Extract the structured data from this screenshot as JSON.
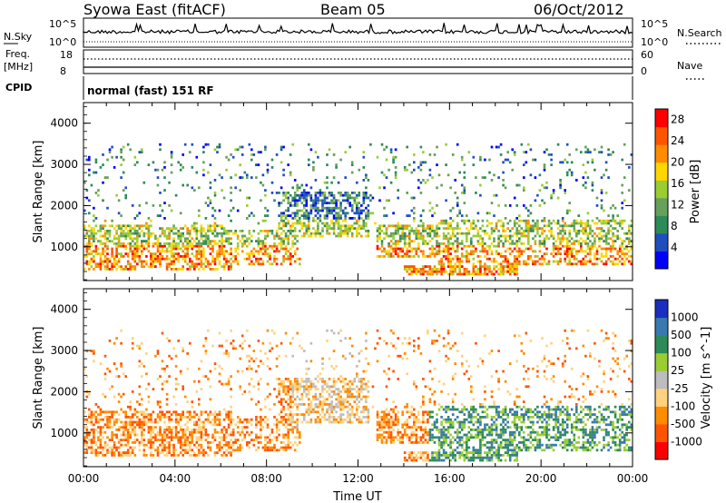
{
  "header": {
    "station": "Syowa East (fitACF)",
    "beam": "Beam 05",
    "date": "06/Oct/2012"
  },
  "strips": {
    "nsky_label": "N.Sky",
    "nsky_ticks": [
      "10^5",
      "10^0"
    ],
    "nsearch_label": "N.Search",
    "nsearch_ticks": [
      "10^5",
      "10^0"
    ],
    "freq_label_1": "Freq.",
    "freq_label_2": "[MHz]",
    "freq_ticks": [
      "18",
      "8"
    ],
    "nave_label": "Nave",
    "nave_ticks": [
      "60",
      "0"
    ],
    "cpid_label": "CPID",
    "cpid_value": "normal (fast) 151 RF"
  },
  "colors": {
    "power_scale": [
      "#0000ff",
      "#1f4fbf",
      "#2e8b57",
      "#66a05a",
      "#9acd32",
      "#ffd700",
      "#ff8c00",
      "#ff5500",
      "#ff0000"
    ],
    "velocity_scale": [
      "#ff0000",
      "#ff5500",
      "#ff8c00",
      "#ffd27f",
      "#bdbdbd",
      "#9acd32",
      "#2e8b57",
      "#3a78b0",
      "#1a2fbf"
    ]
  },
  "chart_data": [
    {
      "type": "heatmap",
      "title": "Power",
      "ylabel": "Slant Range [km]",
      "xlabel": "Time UT",
      "x_ticks": [
        "00:00",
        "04:00",
        "08:00",
        "12:00",
        "16:00",
        "20:00",
        "00:00"
      ],
      "y_ticks": [
        1000,
        2000,
        3000,
        4000
      ],
      "ylim": [
        180,
        4500
      ],
      "xlim_hours": [
        0,
        24
      ],
      "colorbar": {
        "label": "Power [dB]",
        "ticks": [
          4,
          8,
          12,
          16,
          20,
          24,
          28
        ],
        "range": [
          0,
          30
        ]
      }
    },
    {
      "type": "heatmap",
      "title": "Velocity",
      "ylabel": "Slant Range [km]",
      "xlabel": "Time UT",
      "x_ticks": [
        "00:00",
        "04:00",
        "08:00",
        "12:00",
        "16:00",
        "20:00",
        "00:00"
      ],
      "y_ticks": [
        1000,
        2000,
        3000,
        4000
      ],
      "ylim": [
        180,
        4500
      ],
      "xlim_hours": [
        0,
        24
      ],
      "colorbar": {
        "label": "Velocity [m s^-1]",
        "ticks": [
          1000,
          500,
          100,
          25,
          -25,
          -100,
          -500,
          -1000
        ]
      }
    }
  ],
  "x_axis_label": "Time UT"
}
